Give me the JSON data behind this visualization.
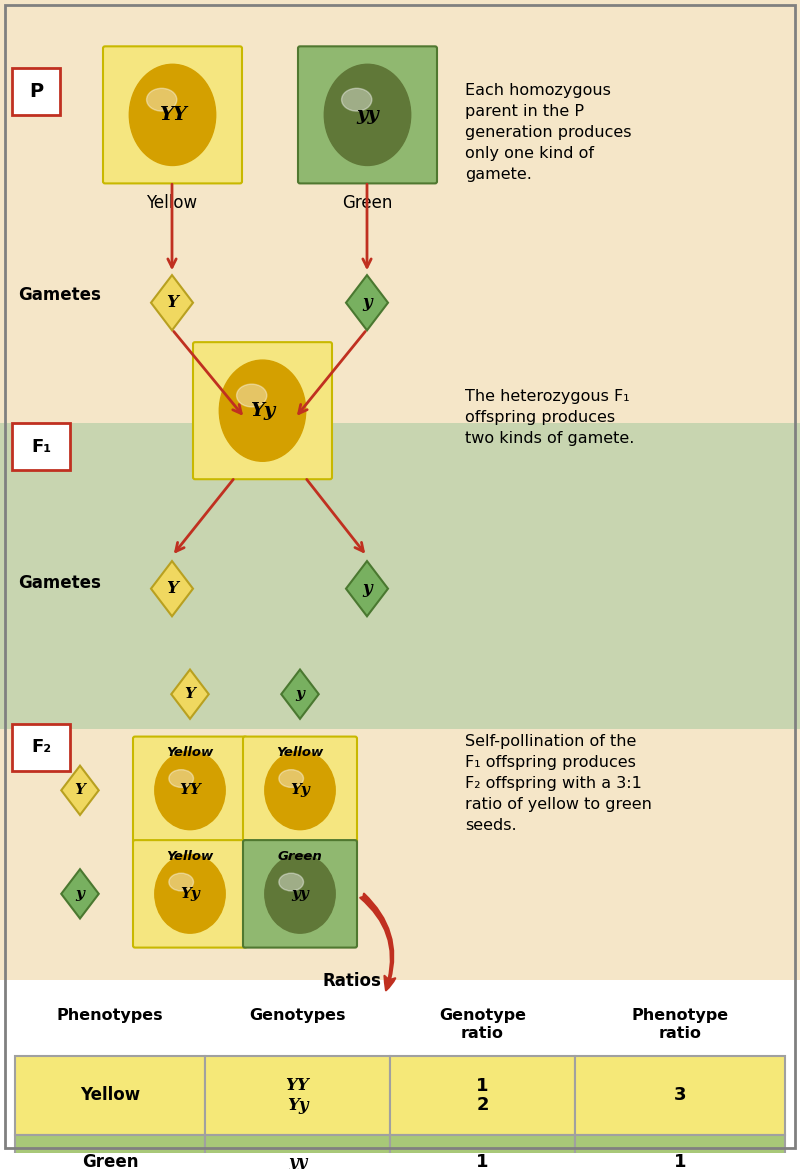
{
  "bg_top": "#f5e6c8",
  "bg_mid": "#c8d5b0",
  "bg_bottom": "#ffffff",
  "yellow_box": "#f5e680",
  "yellow_box_border": "#c8b800",
  "green_box": "#90b870",
  "green_box_border": "#507830",
  "yellow_seed_color": "#d4a000",
  "green_seed_color": "#607838",
  "diamond_yellow": "#f0d860",
  "diamond_yellow_border": "#b8a020",
  "diamond_green": "#78b060",
  "diamond_green_border": "#4a7830",
  "arrow_color": "#c03020",
  "label_box_border": "#c03020",
  "table_yellow_row": "#f5e878",
  "table_green_row": "#a8c878",
  "text_desc_p": "Each homozygous\nparent in the P\ngeneration produces\nonly one kind of\ngamete.",
  "text_desc_f1": "The heterozygous F₁\noffspring produces\ntwo kinds of gamete.",
  "text_desc_f2": "Self-pollination of the\nF₁ offspring produces\nF₂ offspring with a 3:1\nratio of yellow to green\nseeds."
}
